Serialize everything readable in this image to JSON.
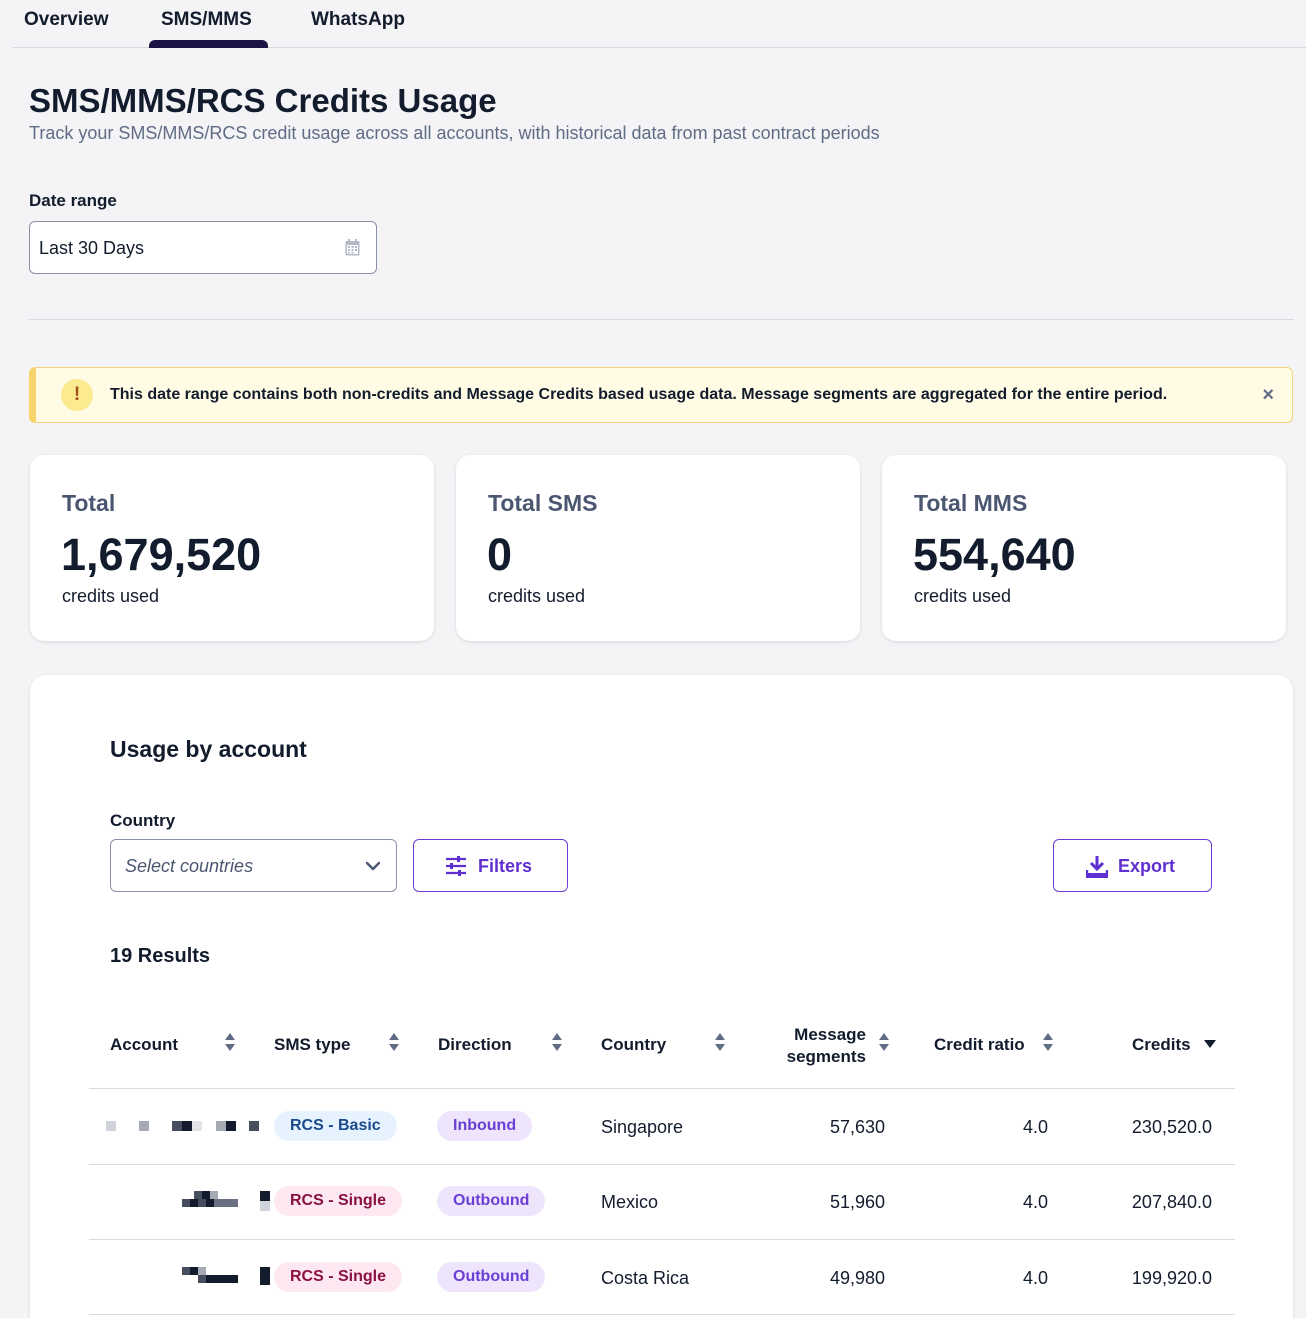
{
  "tabs": [
    {
      "label": "Overview"
    },
    {
      "label": "SMS/MMS"
    },
    {
      "label": "WhatsApp"
    }
  ],
  "active_tab": "SMS/MMS",
  "header": {
    "title": "SMS/MMS/RCS Credits Usage",
    "subtitle": "Track your SMS/MMS/RCS credit usage across all accounts, with historical data from past contract periods"
  },
  "date_range": {
    "label": "Date range",
    "value": "Last 30 Days",
    "icon": "calendar-icon"
  },
  "warning": {
    "text": "This date range contains both non-credits and Message Credits based usage data. Message segments are aggregated for the entire period.",
    "icon_glyph": "!",
    "close_glyph": "×"
  },
  "stats": [
    {
      "label": "Total",
      "value": "1,679,520",
      "sub": "credits used"
    },
    {
      "label": "Total SMS",
      "value": "0",
      "sub": "credits used"
    },
    {
      "label": "Total MMS",
      "value": "554,640",
      "sub": "credits used"
    }
  ],
  "usage": {
    "title": "Usage by account",
    "country_label": "Country",
    "country_placeholder": "Select countries",
    "filters_label": "Filters",
    "export_label": "Export",
    "results": "19 Results",
    "columns": {
      "account": "Account",
      "sms_type": "SMS type",
      "direction": "Direction",
      "country": "Country",
      "segments_line1": "Message",
      "segments_line2": "segments",
      "credit_ratio": "Credit ratio",
      "credits": "Credits"
    },
    "rows": [
      {
        "sms_type": "RCS - Basic",
        "direction": "Inbound",
        "country": "Singapore",
        "segments": "57,630",
        "ratio": "4.0",
        "credits": "230,520.0"
      },
      {
        "sms_type": "RCS - Single",
        "direction": "Outbound",
        "country": "Mexico",
        "segments": "51,960",
        "ratio": "4.0",
        "credits": "207,840.0"
      },
      {
        "sms_type": "RCS - Single",
        "direction": "Outbound",
        "country": "Costa Rica",
        "segments": "49,980",
        "ratio": "4.0",
        "credits": "199,920.0"
      }
    ]
  },
  "colors": {
    "accent": "#5f2fd1",
    "tab_indicator": "#1a1544",
    "warning_bg": "#fffbe5"
  }
}
